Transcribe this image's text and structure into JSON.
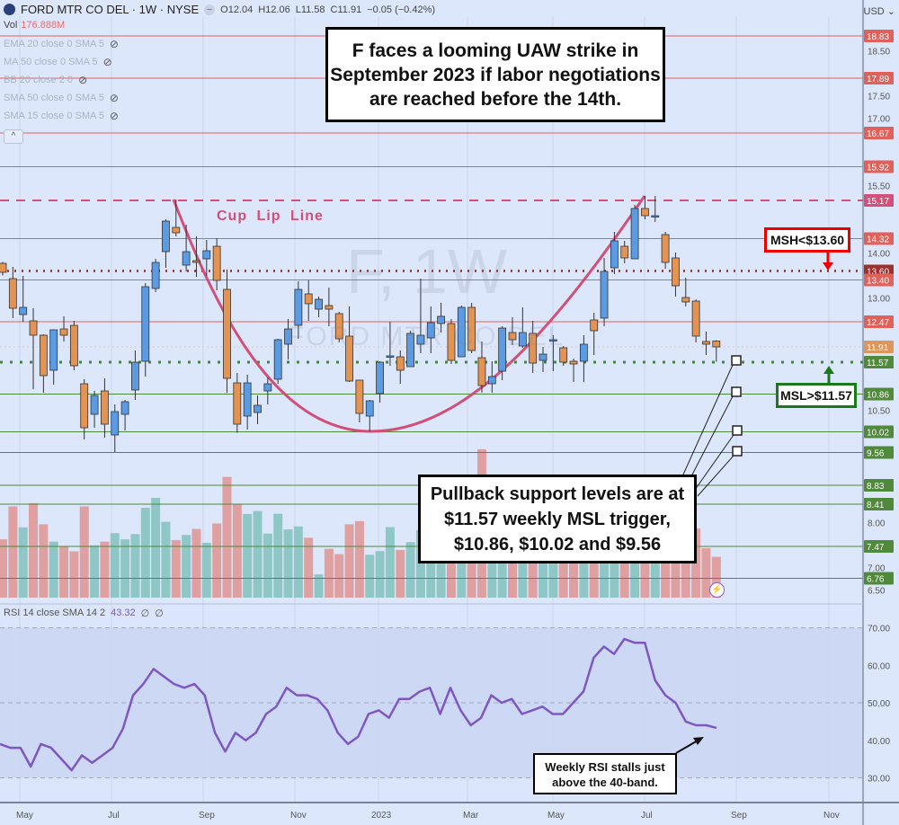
{
  "header": {
    "symbol": "FORD MTR CO DEL · 1W · NYSE",
    "open": "O12.04",
    "high": "H12.06",
    "low": "L11.58",
    "close": "C11.91",
    "change": "−0.05 (−0.42%)",
    "vol_label": "Vol",
    "vol_value": "176.888M",
    "currency": "USD ⌄"
  },
  "indicators": [
    {
      "label": "EMA 20 close 0 SMA 5"
    },
    {
      "label": "MA 50 close 0 SMA 5"
    },
    {
      "label": "BB 20 close 2 0"
    },
    {
      "label": "SMA 50 close 0 SMA 5"
    },
    {
      "label": "SMA 15 close 0 SMA 5"
    }
  ],
  "rsi_header": {
    "label": "RSI 14 close SMA 14 2",
    "value": "43.32",
    "extra1": "∅",
    "extra2": "∅"
  },
  "watermark": {
    "big": "F, 1W",
    "small": "FORD MTR CO DEL"
  },
  "annotations": {
    "top_box": [
      "F faces a looming UAW strike in",
      "September 2023 if labor negotiations",
      "are reached before the 14th."
    ],
    "pullback_box": [
      "Pullback support levels are at",
      "$11.57 weekly MSL trigger,",
      "$10.86, $10.02 and $9.56"
    ],
    "rsi_box": [
      "Weekly RSI stalls just",
      "above the 40-band."
    ],
    "msh": "MSH<$13.60",
    "msl": "MSL>$11.57",
    "cup_lip": "Cup  Lip Line"
  },
  "colors": {
    "up": "#5b9be3",
    "down": "#e39352",
    "vol_up": "#8fc7c6",
    "vol_down": "#dea0a0",
    "rsi": "#7e57c2",
    "red_level": "#e2605a",
    "green_level": "#4f8a3a",
    "cup": "#d24f78"
  },
  "chart_data": {
    "type": "candlestick",
    "title": "FORD MTR CO DEL · 1W · NYSE",
    "ylim": [
      6.3,
      19.5
    ],
    "price_ticks": [
      "18.50",
      "17.50",
      "17.00",
      "15.50",
      "14.00",
      "13.00",
      "10.50",
      "8.00",
      "7.00",
      "6.50"
    ],
    "time_labels": [
      "May",
      "Jul",
      "Sep",
      "Nov",
      "2023",
      "Mar",
      "May",
      "Jul",
      "Sep",
      "Nov"
    ],
    "levels": [
      {
        "price": "18.83",
        "kind": "red"
      },
      {
        "price": "17.89",
        "kind": "red"
      },
      {
        "price": "16.67",
        "kind": "red"
      },
      {
        "price": "15.92",
        "kind": "red"
      },
      {
        "price": "15.17",
        "kind": "cup-lip"
      },
      {
        "price": "14.32",
        "kind": "red"
      },
      {
        "price": "13.60",
        "kind": "msh"
      },
      {
        "price": "13.40",
        "kind": "red"
      },
      {
        "price": "12.47",
        "kind": "red"
      },
      {
        "price": "11.91",
        "kind": "last"
      },
      {
        "price": "11.57",
        "kind": "msl"
      },
      {
        "price": "10.86",
        "kind": "green"
      },
      {
        "price": "10.02",
        "kind": "green"
      },
      {
        "price": "9.56",
        "kind": "green"
      },
      {
        "price": "8.83",
        "kind": "green"
      },
      {
        "price": "8.41",
        "kind": "green"
      },
      {
        "price": "7.47",
        "kind": "green"
      },
      {
        "price": "6.76",
        "kind": "green"
      }
    ],
    "ohlc": [
      [
        13.77,
        13.8,
        13.5,
        13.57
      ],
      [
        13.43,
        13.69,
        12.55,
        12.77
      ],
      [
        12.63,
        13.49,
        12.47,
        12.79
      ],
      [
        12.49,
        12.77,
        10.97,
        12.17
      ],
      [
        12.17,
        12.19,
        10.89,
        11.27
      ],
      [
        11.39,
        12.29,
        11.07,
        12.29
      ],
      [
        12.31,
        12.59,
        12.03,
        12.17
      ],
      [
        12.39,
        12.49,
        11.39,
        11.49
      ],
      [
        11.09,
        11.19,
        9.85,
        10.11
      ],
      [
        10.41,
        10.93,
        10.11,
        10.83
      ],
      [
        10.93,
        11.21,
        9.89,
        10.19
      ],
      [
        9.95,
        10.63,
        9.57,
        10.47
      ],
      [
        10.41,
        10.73,
        10.05,
        10.69
      ],
      [
        10.95,
        11.83,
        10.73,
        11.57
      ],
      [
        11.59,
        13.33,
        11.25,
        13.25
      ],
      [
        13.21,
        13.87,
        13.13,
        13.79
      ],
      [
        14.03,
        14.75,
        13.67,
        14.71
      ],
      [
        14.57,
        15.19,
        14.37,
        14.45
      ],
      [
        13.73,
        14.63,
        13.59,
        14.03
      ],
      [
        13.83,
        14.37,
        13.47,
        13.79
      ],
      [
        13.87,
        14.29,
        13.49,
        14.05
      ],
      [
        14.15,
        14.33,
        13.17,
        13.39
      ],
      [
        13.19,
        13.63,
        10.89,
        11.21
      ],
      [
        11.11,
        11.33,
        10.0,
        10.19
      ],
      [
        10.37,
        11.29,
        10.07,
        11.11
      ],
      [
        10.45,
        10.83,
        10.19,
        10.61
      ],
      [
        10.93,
        11.23,
        10.63,
        11.09
      ],
      [
        11.19,
        12.09,
        11.09,
        12.07
      ],
      [
        11.97,
        12.53,
        11.63,
        12.31
      ],
      [
        12.39,
        13.37,
        12.09,
        13.19
      ],
      [
        13.09,
        13.39,
        12.49,
        12.87
      ],
      [
        12.75,
        13.03,
        12.57,
        12.97
      ],
      [
        12.83,
        13.23,
        12.37,
        12.75
      ],
      [
        12.65,
        12.69,
        12.01,
        12.09
      ],
      [
        12.15,
        12.81,
        11.13,
        11.15
      ],
      [
        11.17,
        11.17,
        10.23,
        10.43
      ],
      [
        10.37,
        10.73,
        10.03,
        10.71
      ],
      [
        10.87,
        11.59,
        10.67,
        11.57
      ],
      [
        11.71,
        12.47,
        11.49,
        11.71
      ],
      [
        11.69,
        11.83,
        11.09,
        11.39
      ],
      [
        11.47,
        12.27,
        11.47,
        12.21
      ],
      [
        11.97,
        13.43,
        11.77,
        12.17
      ],
      [
        12.11,
        12.81,
        11.77,
        12.45
      ],
      [
        12.43,
        12.89,
        12.23,
        12.59
      ],
      [
        12.43,
        12.53,
        11.53,
        11.61
      ],
      [
        11.69,
        12.83,
        11.69,
        12.79
      ],
      [
        12.79,
        12.89,
        11.77,
        11.83
      ],
      [
        11.67,
        12.03,
        10.89,
        11.05
      ],
      [
        11.09,
        11.59,
        10.89,
        11.25
      ],
      [
        11.37,
        12.37,
        11.17,
        12.33
      ],
      [
        12.23,
        12.57,
        11.95,
        12.07
      ],
      [
        11.93,
        12.79,
        11.89,
        12.23
      ],
      [
        12.21,
        12.49,
        11.33,
        11.55
      ],
      [
        11.61,
        11.91,
        11.35,
        11.75
      ],
      [
        12.07,
        12.17,
        11.37,
        12.07
      ],
      [
        11.89,
        11.93,
        11.49,
        11.57
      ],
      [
        11.59,
        11.65,
        11.13,
        11.53
      ],
      [
        11.59,
        12.17,
        11.13,
        11.97
      ],
      [
        12.51,
        12.67,
        11.73,
        12.27
      ],
      [
        12.55,
        13.89,
        12.37,
        13.59
      ],
      [
        13.67,
        14.47,
        13.53,
        14.27
      ],
      [
        14.15,
        14.27,
        13.77,
        13.89
      ],
      [
        13.87,
        15.07,
        13.87,
        14.99
      ],
      [
        14.99,
        15.27,
        14.75,
        14.83
      ],
      [
        14.83,
        15.27,
        14.69,
        14.83
      ],
      [
        14.41,
        14.47,
        13.65,
        13.79
      ],
      [
        13.89,
        14.01,
        13.03,
        13.27
      ],
      [
        13.01,
        13.45,
        12.81,
        12.91
      ],
      [
        12.93,
        12.97,
        12.01,
        12.15
      ],
      [
        12.03,
        12.25,
        11.73,
        11.97
      ],
      [
        12.04,
        12.06,
        11.58,
        11.91
      ]
    ],
    "volume_millions": [
      253,
      396,
      305,
      410,
      318,
      243,
      221,
      201,
      396,
      227,
      243,
      280,
      253,
      276,
      390,
      433,
      329,
      250,
      272,
      298,
      238,
      322,
      524,
      406,
      363,
      376,
      278,
      364,
      296,
      309,
      260,
      101,
      212,
      189,
      318,
      332,
      186,
      202,
      306,
      207,
      241,
      293,
      254,
      267,
      280,
      241,
      293,
      644,
      319,
      340,
      300,
      310,
      290,
      280,
      300,
      270,
      250,
      280,
      300,
      420,
      380,
      300,
      450,
      320,
      250,
      330,
      300,
      280,
      300,
      215,
      177
    ],
    "rsi": {
      "ticks": [
        "70.00",
        "60.00",
        "50.00",
        "40.00",
        "30.00"
      ],
      "bands": [
        70,
        50,
        30
      ],
      "values": [
        39,
        38,
        38,
        33,
        39,
        38,
        35,
        32,
        36,
        34,
        36,
        38,
        43,
        52,
        55,
        59,
        57,
        55,
        54,
        55,
        52,
        42,
        37,
        42,
        40,
        42,
        47,
        49,
        54,
        52,
        52,
        51,
        48,
        42,
        39,
        41,
        47,
        48,
        46,
        51,
        51,
        53,
        54,
        47,
        54,
        48,
        44,
        46,
        52,
        50,
        51,
        47,
        48,
        49,
        47,
        47,
        50,
        53,
        62,
        65,
        63,
        67,
        66,
        66,
        56,
        52,
        50,
        45,
        44,
        44,
        43.32
      ]
    }
  }
}
